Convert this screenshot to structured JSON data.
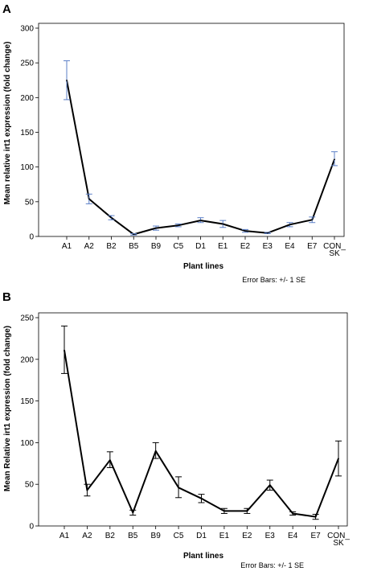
{
  "chart_data": [
    {
      "type": "line",
      "panel_label": "A",
      "categories": [
        "A1",
        "A2",
        "B2",
        "B5",
        "B9",
        "C5",
        "D1",
        "E1",
        "E2",
        "E3",
        "E4",
        "E7",
        "CON_\nSK"
      ],
      "values": [
        225,
        54,
        27,
        3,
        12,
        16,
        23,
        18,
        8,
        5,
        17,
        24,
        111
      ],
      "error_low": [
        197,
        47,
        24,
        2,
        9,
        14,
        20,
        13,
        6,
        4,
        14,
        20,
        102
      ],
      "error_high": [
        253,
        61,
        30,
        4,
        15,
        18,
        27,
        23,
        10,
        6,
        20,
        28,
        122
      ],
      "error_bar_color": "#5b7fc7",
      "line_color": "#000000",
      "xlabel": "Plant lines",
      "ylabel": "Mean relative irt1 expression (fold change)",
      "ylim": [
        0,
        300
      ],
      "yticks": [
        0,
        50,
        100,
        150,
        200,
        250,
        300
      ],
      "note": "Error Bars: +/- 1 SE",
      "grid": false
    },
    {
      "type": "line",
      "panel_label": "B",
      "categories": [
        "A1",
        "A2",
        "B2",
        "B5",
        "B9",
        "C5",
        "D1",
        "E1",
        "E2",
        "E3",
        "E4",
        "E7",
        "CON_\nSK"
      ],
      "values": [
        211,
        43,
        79,
        16,
        90,
        46,
        33,
        18,
        18,
        49,
        15,
        11,
        81
      ],
      "error_low": [
        183,
        36,
        70,
        13,
        81,
        34,
        28,
        15,
        15,
        43,
        13,
        8,
        60
      ],
      "error_high": [
        240,
        50,
        89,
        19,
        100,
        59,
        38,
        21,
        21,
        55,
        17,
        14,
        102
      ],
      "error_bar_color": "#000000",
      "line_color": "#000000",
      "xlabel": "Plant lines",
      "ylabel": "Mean Relative irt1 expression (fold change)",
      "ylim": [
        0,
        250
      ],
      "yticks": [
        0,
        50,
        100,
        150,
        200,
        250
      ],
      "note": "Error Bars: +/- 1 SE",
      "grid": false
    }
  ]
}
